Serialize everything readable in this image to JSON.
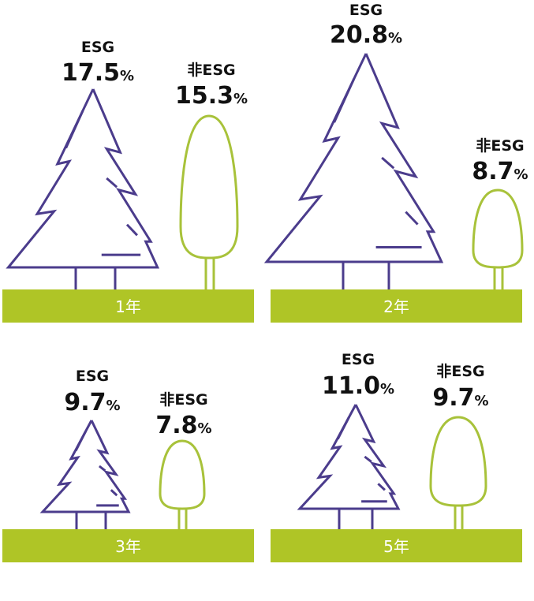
{
  "chart_data": {
    "type": "bar",
    "categories": [
      "1年",
      "2年",
      "3年",
      "5年"
    ],
    "series": [
      {
        "name": "ESG",
        "values": [
          17.5,
          20.8,
          9.7,
          11.0
        ]
      },
      {
        "name": "非ESG",
        "values": [
          15.3,
          8.7,
          7.8,
          9.7
        ]
      }
    ],
    "value_labels": {
      "ESG": [
        "17.5",
        "20.8",
        "9.7",
        "11.0"
      ],
      "非ESG": [
        "15.3",
        "8.7",
        "7.8",
        "9.7"
      ]
    },
    "unit": "%",
    "colors": {
      "esg": "#4b3c8c",
      "non_esg": "#a8c23a",
      "ground": "#afc526"
    }
  }
}
